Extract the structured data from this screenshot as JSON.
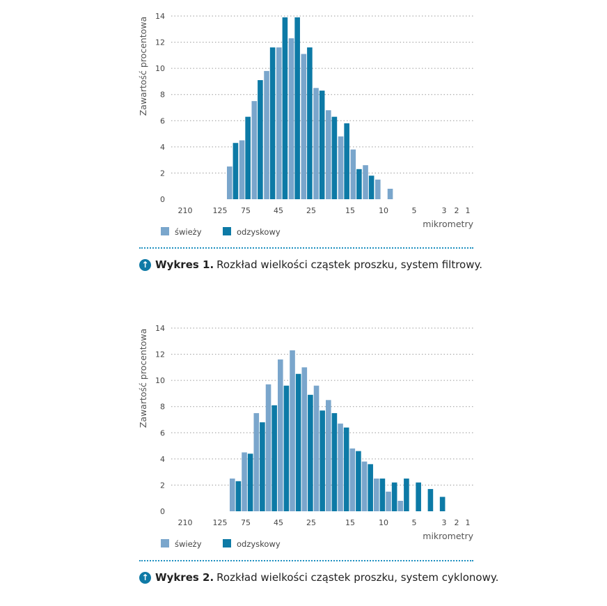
{
  "colors": {
    "fresh": "#7aa6cc",
    "recycled": "#0d7aa6",
    "grid": "#9a9a9a",
    "accent": "#0f7aa6"
  },
  "chart_data": [
    {
      "type": "bar",
      "ylabel": "Zawartość procentowa",
      "xlabel": "mikrometry",
      "ylim": [
        0,
        14
      ],
      "yticks": [
        0,
        2,
        4,
        6,
        8,
        10,
        12,
        14
      ],
      "xticks": [
        "210",
        "125",
        "75",
        "45",
        "25",
        "15",
        "10",
        "5",
        "3",
        "2",
        "1"
      ],
      "grid": true,
      "legend_position": "bottom-left",
      "series": [
        {
          "name": "świeży",
          "values": [
            2.5,
            4.5,
            7.5,
            9.8,
            11.6,
            12.3,
            11.1,
            8.5,
            6.8,
            4.8,
            3.8,
            2.6,
            1.5,
            0.8,
            0,
            0,
            0
          ]
        },
        {
          "name": "odzyskowy",
          "values": [
            4.3,
            6.3,
            9.1,
            11.6,
            13.9,
            13.9,
            11.6,
            8.3,
            6.3,
            5.8,
            2.3,
            1.8,
            0,
            0,
            0,
            0,
            0
          ]
        }
      ],
      "caption_label": "Wykres 1.",
      "caption_text": "Rozkład wielkości cząstek proszku, system filtrowy."
    },
    {
      "type": "bar",
      "ylabel": "Zawartość procentowa",
      "xlabel": "mikrometry",
      "ylim": [
        0,
        14
      ],
      "yticks": [
        0,
        2,
        4,
        6,
        8,
        10,
        12,
        14
      ],
      "xticks": [
        "210",
        "125",
        "75",
        "45",
        "25",
        "15",
        "10",
        "5",
        "3",
        "2",
        "1"
      ],
      "grid": true,
      "legend_position": "bottom-left",
      "series": [
        {
          "name": "świeży",
          "values": [
            2.5,
            4.5,
            7.5,
            9.7,
            11.6,
            12.3,
            11.0,
            9.6,
            8.5,
            6.7,
            4.8,
            3.8,
            2.5,
            1.5,
            0.8,
            0,
            0,
            0
          ]
        },
        {
          "name": "odzyskowy",
          "values": [
            2.3,
            4.4,
            6.8,
            8.1,
            9.6,
            10.5,
            8.9,
            7.7,
            7.5,
            6.4,
            4.6,
            3.6,
            2.5,
            2.2,
            2.5,
            2.2,
            1.7,
            1.1
          ]
        }
      ],
      "caption_label": "Wykres 2.",
      "caption_text": "Rozkład wielkości cząstek proszku, system cyklonowy."
    }
  ]
}
